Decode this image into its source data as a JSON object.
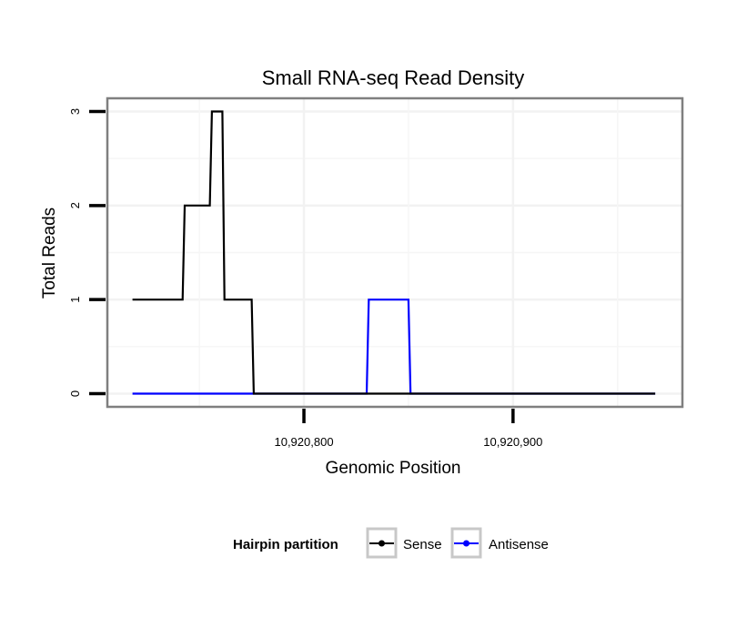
{
  "chart_data": {
    "type": "line",
    "title": "Small RNA-seq Read Density",
    "xlabel": "Genomic Position",
    "ylabel": "Total Reads",
    "xlim": [
      10920706,
      10920981
    ],
    "ylim": [
      -0.14,
      3.14
    ],
    "x_ticks": [
      {
        "value": 10920800,
        "label": "10,920,800"
      },
      {
        "value": 10920900,
        "label": "10,920,900"
      }
    ],
    "y_ticks": [
      {
        "value": 0,
        "label": "0"
      },
      {
        "value": 1,
        "label": "1"
      },
      {
        "value": 2,
        "label": "2"
      },
      {
        "value": 3,
        "label": "3"
      }
    ],
    "grid": true,
    "series": [
      {
        "name": "Sense",
        "color": "#000000",
        "points": [
          [
            10920718,
            1
          ],
          [
            10920742,
            1
          ],
          [
            10920743,
            2
          ],
          [
            10920755,
            2
          ],
          [
            10920756,
            3
          ],
          [
            10920761,
            3
          ],
          [
            10920762,
            1
          ],
          [
            10920775,
            1
          ],
          [
            10920776,
            0
          ],
          [
            10920968,
            0
          ]
        ]
      },
      {
        "name": "Antisense",
        "color": "#0000ff",
        "points": [
          [
            10920718,
            0
          ],
          [
            10920830,
            0
          ],
          [
            10920831,
            1
          ],
          [
            10920850,
            1
          ],
          [
            10920851,
            0
          ],
          [
            10920968,
            0
          ]
        ]
      }
    ],
    "legend": {
      "title": "Hairpin partition",
      "position": "bottom",
      "entries": [
        {
          "label": "Sense",
          "color": "#000000"
        },
        {
          "label": "Antisense",
          "color": "#0000ff"
        }
      ]
    }
  }
}
